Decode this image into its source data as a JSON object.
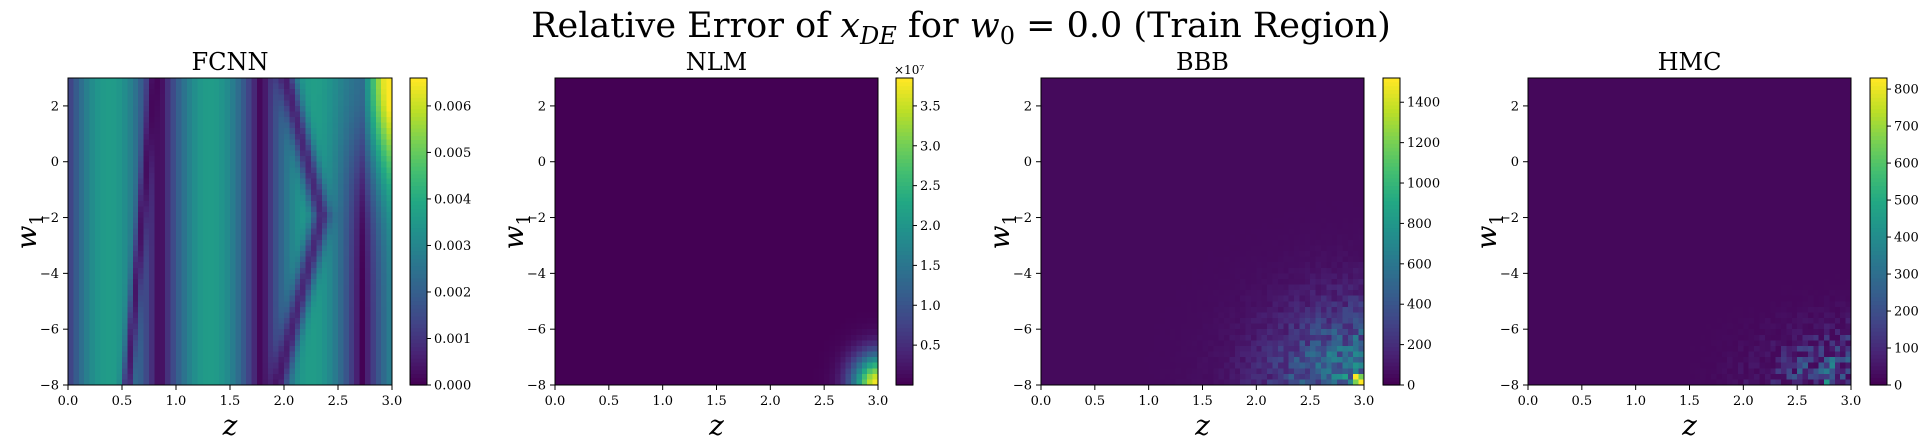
{
  "figure": {
    "title_main": "Relative Error of ",
    "title_var": "x",
    "title_var_sub": "DE",
    "title_for": " for ",
    "title_param": "w",
    "title_param_sub": "0",
    "title_value": " = 0.0",
    "title_region": " (Train Region)"
  },
  "chart_data": [
    {
      "type": "heatmap",
      "title": "FCNN",
      "xlabel": "z",
      "ylabel_var": "w",
      "ylabel_sub": "1",
      "xlim": [
        0.0,
        3.0
      ],
      "ylim": [
        -8,
        3
      ],
      "xticks": [
        "0.0",
        "0.5",
        "1.0",
        "1.5",
        "2.0",
        "2.5",
        "3.0"
      ],
      "yticks": [
        "2",
        "0",
        "−2",
        "−4",
        "−6",
        "−8"
      ],
      "colorbar_range": [
        0.0,
        0.0066
      ],
      "colorbar_ticks": [
        "0.000",
        "0.001",
        "0.002",
        "0.003",
        "0.004",
        "0.005",
        "0.006"
      ],
      "colorbar_multiplier": "",
      "colormap": "viridis",
      "pattern": "vertical bands with curved minimum valleys; peak near z=3, w1=3"
    },
    {
      "type": "heatmap",
      "title": "NLM",
      "xlabel": "z",
      "ylabel_var": "w",
      "ylabel_sub": "1",
      "xlim": [
        0.0,
        3.0
      ],
      "ylim": [
        -8,
        3
      ],
      "xticks": [
        "0.0",
        "0.5",
        "1.0",
        "1.5",
        "2.0",
        "2.5",
        "3.0"
      ],
      "yticks": [
        "2",
        "0",
        "−2",
        "−4",
        "−6",
        "−8"
      ],
      "colorbar_range": [
        0.0,
        3.85
      ],
      "colorbar_ticks": [
        "0.5",
        "1.0",
        "1.5",
        "2.0",
        "2.5",
        "3.0",
        "3.5"
      ],
      "colorbar_multiplier": "×10⁷",
      "colormap": "viridis",
      "pattern": "near zero everywhere; error spike at bottom-right corner (z=3, w1=-8)"
    },
    {
      "type": "heatmap",
      "title": "BBB",
      "xlabel": "z",
      "ylabel_var": "w",
      "ylabel_sub": "1",
      "xlim": [
        0.0,
        3.0
      ],
      "ylim": [
        -8,
        3
      ],
      "xticks": [
        "0.0",
        "0.5",
        "1.0",
        "1.5",
        "2.0",
        "2.5",
        "3.0"
      ],
      "yticks": [
        "2",
        "0",
        "−2",
        "−4",
        "−6",
        "−8"
      ],
      "colorbar_range": [
        0,
        1520
      ],
      "colorbar_ticks": [
        "0",
        "200",
        "400",
        "600",
        "800",
        "1000",
        "1200",
        "1400"
      ],
      "colorbar_multiplier": "",
      "colormap": "viridis",
      "pattern": "near zero everywhere; noisy elevated error in bottom-right region"
    },
    {
      "type": "heatmap",
      "title": "HMC",
      "xlabel": "z",
      "ylabel_var": "w",
      "ylabel_sub": "1",
      "xlim": [
        0.0,
        3.0
      ],
      "ylim": [
        -8,
        3
      ],
      "xticks": [
        "0.0",
        "0.5",
        "1.0",
        "1.5",
        "2.0",
        "2.5",
        "3.0"
      ],
      "yticks": [
        "2",
        "0",
        "−2",
        "−4",
        "−6",
        "−8"
      ],
      "colorbar_range": [
        0,
        830
      ],
      "colorbar_ticks": [
        "0",
        "100",
        "200",
        "300",
        "400",
        "500",
        "600",
        "700",
        "800"
      ],
      "colorbar_multiplier": "",
      "colormap": "viridis",
      "pattern": "near zero everywhere; sparse noisy elevated error in bottom-right corner"
    }
  ]
}
